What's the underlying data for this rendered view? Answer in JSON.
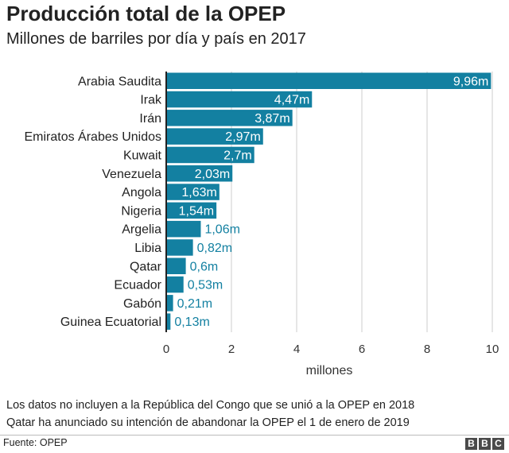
{
  "header": {
    "title": "Producción total de la OPEP",
    "subtitle": "Millones de barriles por día y país en 2017"
  },
  "chart_data": {
    "type": "bar",
    "orientation": "horizontal",
    "categories": [
      "Arabia Saudita",
      "Irak",
      "Irán",
      "Emiratos Árabes Unidos",
      "Kuwait",
      "Venezuela",
      "Angola",
      "Nigeria",
      "Argelia",
      "Libia",
      "Qatar",
      "Ecuador",
      "Gabón",
      "Guinea Ecuatorial"
    ],
    "values": [
      9.96,
      4.47,
      3.87,
      2.97,
      2.7,
      2.03,
      1.63,
      1.54,
      1.06,
      0.82,
      0.6,
      0.53,
      0.21,
      0.13
    ],
    "data_labels": [
      "9,96m",
      "4,47m",
      "3,87m",
      "2,97m",
      "2,7m",
      "2,03m",
      "1,63m",
      "1,54m",
      "1,06m",
      "0,82m",
      "0,6m",
      "0,53m",
      "0,21m",
      "0,13m"
    ],
    "xlabel": "millones",
    "xlim": [
      0,
      10
    ],
    "xticks": [
      0,
      2,
      4,
      6,
      8,
      10
    ],
    "grid": true,
    "legend": "none",
    "colors": {
      "bar": "#1380a1",
      "label_inside": "#ffffff",
      "label_outside": "#1380a1",
      "grid": "#cccccc",
      "axis": "#222222"
    }
  },
  "notes": [
    "Los datos no incluyen a la República del Congo que se unió a la OPEP en 2018",
    "Qatar ha anunciado su intención de abandonar la OPEP el 1 de enero de 2019"
  ],
  "footer": {
    "source": "Fuente: OPEP",
    "logo_letters": [
      "B",
      "B",
      "C"
    ]
  }
}
